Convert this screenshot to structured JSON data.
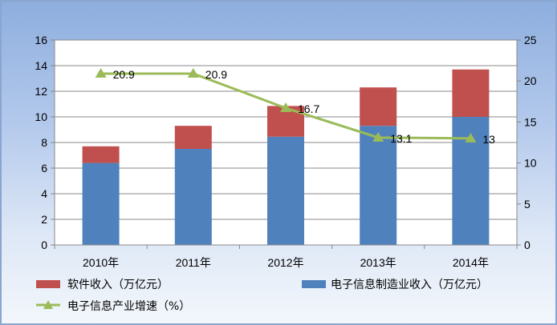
{
  "chart_data": {
    "type": "bar",
    "stacked": true,
    "categories": [
      "2010年",
      "2011年",
      "2012年",
      "2013年",
      "2014年"
    ],
    "series": [
      {
        "name": "电子信息制造业收入（万亿元）",
        "type": "bar",
        "axis": "left",
        "color": "#4f81bd",
        "values": [
          6.4,
          7.5,
          8.45,
          9.3,
          10.0
        ]
      },
      {
        "name": "软件收入（万亿元）",
        "type": "bar",
        "axis": "left",
        "color": "#c0504d",
        "values": [
          1.3,
          1.8,
          2.4,
          3.0,
          3.7
        ]
      },
      {
        "name": "电子信息产业增速（%）",
        "type": "line",
        "axis": "right",
        "color": "#9bbb59",
        "marker": "triangle",
        "values": [
          20.9,
          20.9,
          16.7,
          13.1,
          13
        ],
        "labels": [
          "20.9",
          "20.9",
          "16.7",
          "13.1",
          "13"
        ]
      }
    ],
    "y_left": {
      "range": [
        0,
        16
      ],
      "ticks": [
        "0",
        "2",
        "4",
        "6",
        "8",
        "10",
        "12",
        "14",
        "16"
      ]
    },
    "y_right": {
      "range": [
        0,
        25
      ],
      "ticks": [
        "0",
        "5",
        "10",
        "15",
        "20",
        "25"
      ]
    },
    "grid": true,
    "legend": {
      "position": "bottom",
      "items": [
        "软件收入（万亿元）",
        "电子信息制造业收入（万亿元）",
        "电子信息产业增速（%）"
      ]
    }
  }
}
